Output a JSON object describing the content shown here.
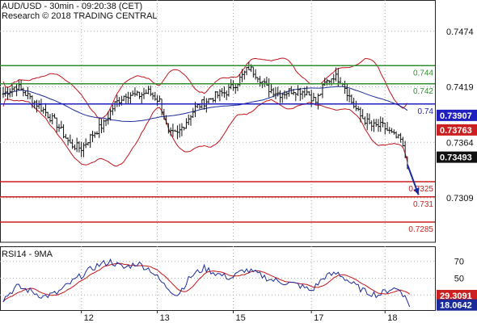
{
  "header": {
    "title": "AUD/USD - 30min - 09:20:38 (CET)",
    "subtitle": "Research © 2018 TRADING CENTRAL"
  },
  "chart_data": [
    {
      "type": "candlestick",
      "title": "AUD/USD - 30min - 09:20:38 (CET)",
      "y_ticks": [
        "0.7474",
        "0.7419",
        "0.7364",
        "0.7309"
      ],
      "ylim": [
        0.7265,
        0.7505
      ],
      "x_ticks": [
        "12",
        "13",
        "15",
        "17",
        "18"
      ],
      "grid": true,
      "levels": [
        {
          "label": "0.744",
          "value": 0.744,
          "color": "#2f8f2f",
          "role": "resistance"
        },
        {
          "label": "0.742",
          "value": 0.7422,
          "color": "#2f8f2f",
          "role": "resistance"
        },
        {
          "label": "0.74",
          "value": 0.7402,
          "color": "#1f1fc0",
          "role": "pivot"
        },
        {
          "label": "0.7325",
          "value": 0.7325,
          "color": "#cc1f1f",
          "role": "support"
        },
        {
          "label": "0.731",
          "value": 0.731,
          "color": "#cc1f1f",
          "role": "support"
        },
        {
          "label": "0.7285",
          "value": 0.7285,
          "color": "#cc1f1f",
          "role": "support"
        }
      ],
      "price_tags": [
        {
          "label": "0.73907",
          "value": 0.73907,
          "color": "#1f1fc0"
        },
        {
          "label": "0.73763",
          "value": 0.73763,
          "color": "#cc1f1f"
        },
        {
          "label": "0.73493",
          "value": 0.73493,
          "color": "#111111"
        }
      ],
      "close_path": [
        {
          "i": 0,
          "v": 0.7412
        },
        {
          "i": 6,
          "v": 0.742
        },
        {
          "i": 12,
          "v": 0.7408
        },
        {
          "i": 18,
          "v": 0.7396
        },
        {
          "i": 24,
          "v": 0.7382
        },
        {
          "i": 30,
          "v": 0.7362
        },
        {
          "i": 35,
          "v": 0.7358
        },
        {
          "i": 40,
          "v": 0.7372
        },
        {
          "i": 45,
          "v": 0.7382
        },
        {
          "i": 50,
          "v": 0.7402
        },
        {
          "i": 55,
          "v": 0.7412
        },
        {
          "i": 60,
          "v": 0.741
        },
        {
          "i": 65,
          "v": 0.7414
        },
        {
          "i": 70,
          "v": 0.7405
        },
        {
          "i": 74,
          "v": 0.7372
        },
        {
          "i": 78,
          "v": 0.7372
        },
        {
          "i": 82,
          "v": 0.7385
        },
        {
          "i": 86,
          "v": 0.7398
        },
        {
          "i": 90,
          "v": 0.7404
        },
        {
          "i": 95,
          "v": 0.741
        },
        {
          "i": 100,
          "v": 0.7414
        },
        {
          "i": 105,
          "v": 0.7424
        },
        {
          "i": 110,
          "v": 0.7438
        },
        {
          "i": 114,
          "v": 0.743
        },
        {
          "i": 118,
          "v": 0.7418
        },
        {
          "i": 124,
          "v": 0.7412
        },
        {
          "i": 130,
          "v": 0.7416
        },
        {
          "i": 136,
          "v": 0.7414
        },
        {
          "i": 140,
          "v": 0.7404
        },
        {
          "i": 144,
          "v": 0.7422
        },
        {
          "i": 148,
          "v": 0.743
        },
        {
          "i": 152,
          "v": 0.7424
        },
        {
          "i": 156,
          "v": 0.7404
        },
        {
          "i": 160,
          "v": 0.739
        },
        {
          "i": 165,
          "v": 0.738
        },
        {
          "i": 170,
          "v": 0.738
        },
        {
          "i": 175,
          "v": 0.737
        },
        {
          "i": 178,
          "v": 0.7366
        },
        {
          "i": 181,
          "v": 0.7342
        }
      ],
      "forecast_arrow": {
        "from": {
          "i": 181,
          "v": 0.7342
        },
        "to": {
          "i": 186,
          "v": 0.7312
        },
        "color": "#1a2a9a"
      },
      "x_tick_index": [
        35,
        69,
        103,
        138,
        171
      ],
      "n_bars": 190
    },
    {
      "type": "line",
      "title": "RSI14 - 9MA",
      "y_ticks": [
        "70",
        "50",
        "30"
      ],
      "ylim": [
        12,
        88
      ],
      "grid": true,
      "value_tags": [
        {
          "label": "29.3091",
          "value": 29.3091,
          "color": "#cc1f1f"
        },
        {
          "label": "18.0642",
          "value": 18.0642,
          "color": "#1a2a9a"
        }
      ],
      "rsi_path": [
        {
          "i": 0,
          "v": 25
        },
        {
          "i": 6,
          "v": 40
        },
        {
          "i": 12,
          "v": 35
        },
        {
          "i": 18,
          "v": 28
        },
        {
          "i": 24,
          "v": 32
        },
        {
          "i": 30,
          "v": 44
        },
        {
          "i": 36,
          "v": 55
        },
        {
          "i": 42,
          "v": 65
        },
        {
          "i": 48,
          "v": 70
        },
        {
          "i": 54,
          "v": 62
        },
        {
          "i": 60,
          "v": 68
        },
        {
          "i": 66,
          "v": 60
        },
        {
          "i": 72,
          "v": 42
        },
        {
          "i": 78,
          "v": 30
        },
        {
          "i": 84,
          "v": 52
        },
        {
          "i": 90,
          "v": 62
        },
        {
          "i": 96,
          "v": 55
        },
        {
          "i": 102,
          "v": 50
        },
        {
          "i": 108,
          "v": 60
        },
        {
          "i": 114,
          "v": 55
        },
        {
          "i": 120,
          "v": 48
        },
        {
          "i": 126,
          "v": 45
        },
        {
          "i": 132,
          "v": 42
        },
        {
          "i": 138,
          "v": 35
        },
        {
          "i": 144,
          "v": 52
        },
        {
          "i": 150,
          "v": 56
        },
        {
          "i": 156,
          "v": 44
        },
        {
          "i": 162,
          "v": 34
        },
        {
          "i": 168,
          "v": 30
        },
        {
          "i": 174,
          "v": 38
        },
        {
          "i": 178,
          "v": 36
        },
        {
          "i": 182,
          "v": 18
        }
      ]
    }
  ]
}
